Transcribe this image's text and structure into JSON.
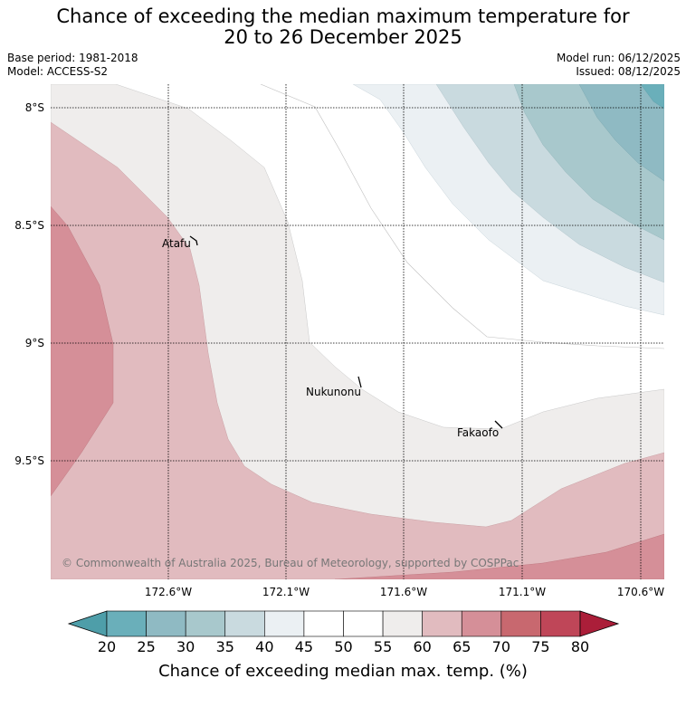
{
  "title": {
    "line1": "Chance of exceeding the median maximum temperature for",
    "line2": "20 to 26 December 2025"
  },
  "meta": {
    "base_period": "Base period: 1981-2018",
    "model": "Model: ACCESS-S2",
    "model_run": "Model run: 06/12/2025",
    "issued": "Issued: 08/12/2025"
  },
  "map": {
    "lat_labels": [
      "8°S",
      "8.5°S",
      "9°S",
      "9.5°S"
    ],
    "lon_labels": [
      "172.6°W",
      "172.1°W",
      "171.6°W",
      "171.1°W",
      "170.6°W"
    ],
    "places": [
      {
        "name": "Atafu"
      },
      {
        "name": "Nukunonu"
      },
      {
        "name": "Fakaofo"
      }
    ],
    "copyright": "© Commonwealth of Australia 2025, Bureau of Meteorology, supported by COSPPac"
  },
  "colorbar": {
    "ticks": [
      "20",
      "25",
      "30",
      "35",
      "40",
      "45",
      "50",
      "55",
      "60",
      "65",
      "70",
      "75",
      "80"
    ],
    "colors": {
      "below20": "#4e9ea9",
      "c20_25": "#6aafba",
      "c25_30": "#8fbac3",
      "c30_35": "#a8c8cc",
      "c35_40": "#c9dadf",
      "c40_45": "#ebf0f3",
      "c45_50": "#ffffff",
      "c50_55": "#ffffff",
      "c55_60": "#efedec",
      "c60_65": "#e1bbbf",
      "c65_70": "#d58f98",
      "c70_75": "#c8686f",
      "c75_80": "#bf4658",
      "above80": "#ab1e39"
    },
    "label": "Chance of exceeding median max. temp. (%)"
  }
}
